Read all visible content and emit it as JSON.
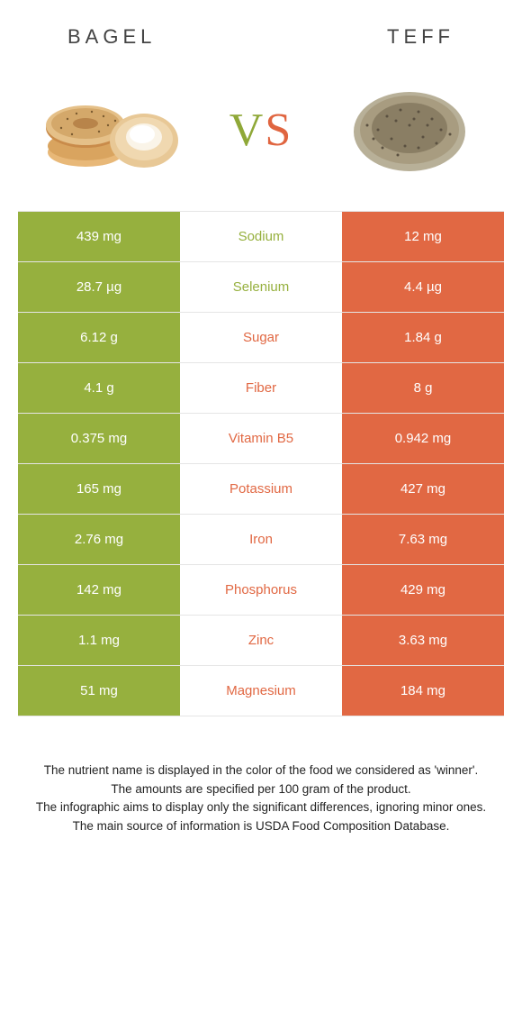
{
  "colors": {
    "green": "#96b03e",
    "orange": "#e16843",
    "white": "#ffffff",
    "text_dark": "#444444"
  },
  "header": {
    "left": "BAGEL",
    "right": "TEFF"
  },
  "vs": {
    "v": "V",
    "s": "S"
  },
  "rows": [
    {
      "left": "439 mg",
      "mid": "Sodium",
      "right": "12 mg",
      "winner": "left"
    },
    {
      "left": "28.7 µg",
      "mid": "Selenium",
      "right": "4.4 µg",
      "winner": "left"
    },
    {
      "left": "6.12 g",
      "mid": "Sugar",
      "right": "1.84 g",
      "winner": "right"
    },
    {
      "left": "4.1 g",
      "mid": "Fiber",
      "right": "8 g",
      "winner": "right"
    },
    {
      "left": "0.375 mg",
      "mid": "Vitamin B5",
      "right": "0.942 mg",
      "winner": "right"
    },
    {
      "left": "165 mg",
      "mid": "Potassium",
      "right": "427 mg",
      "winner": "right"
    },
    {
      "left": "2.76 mg",
      "mid": "Iron",
      "right": "7.63 mg",
      "winner": "right"
    },
    {
      "left": "142 mg",
      "mid": "Phosphorus",
      "right": "429 mg",
      "winner": "right"
    },
    {
      "left": "1.1 mg",
      "mid": "Zinc",
      "right": "3.63 mg",
      "winner": "right"
    },
    {
      "left": "51 mg",
      "mid": "Magnesium",
      "right": "184 mg",
      "winner": "right"
    }
  ],
  "footer": {
    "line1": "The nutrient name is displayed in the color of the food we considered as 'winner'.",
    "line2": "The amounts are specified per 100 gram of the product.",
    "line3": "The infographic aims to display only the significant differences, ignoring minor ones.",
    "line4": "The main source of information is USDA Food Composition Database."
  }
}
